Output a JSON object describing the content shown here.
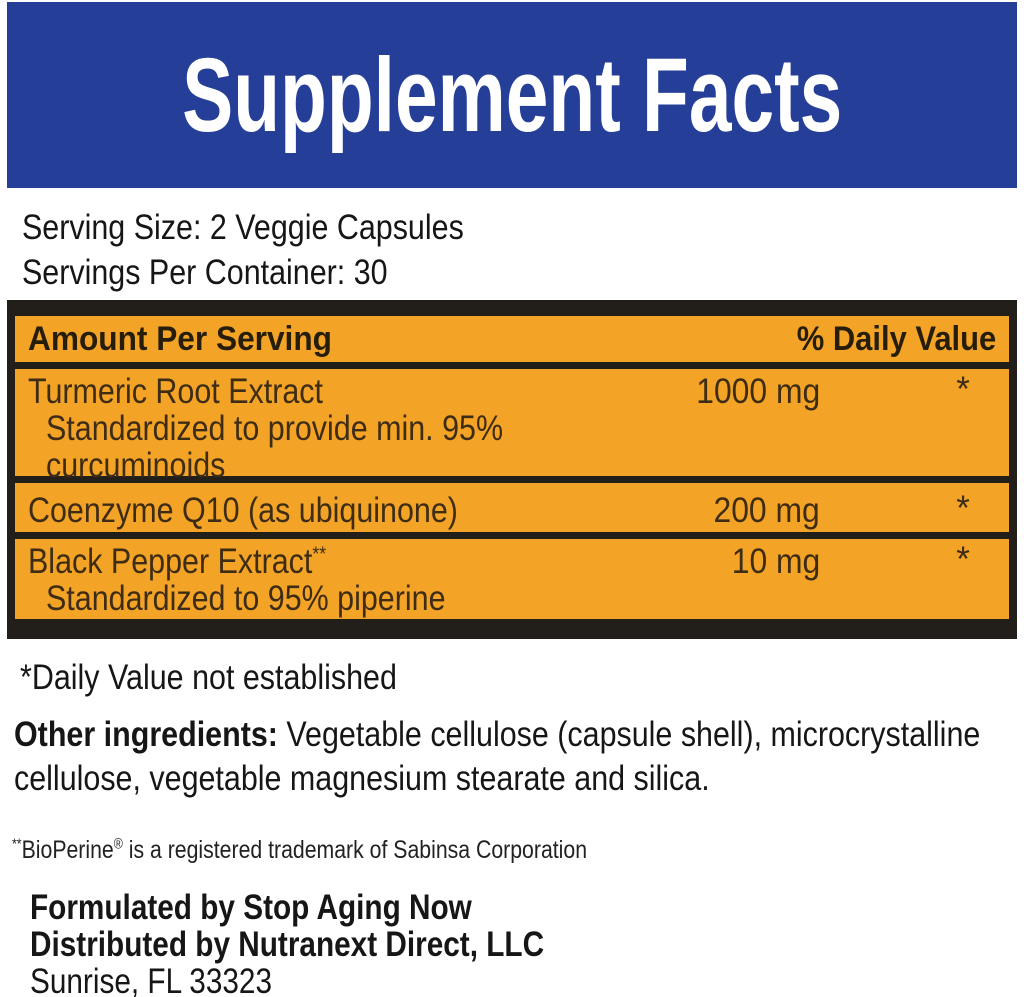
{
  "header": {
    "title": "Supplement Facts",
    "bg_color": "#253F98",
    "text_color": "#FFFFFF"
  },
  "serving": {
    "serving_size": "Serving Size: 2 Veggie Capsules",
    "servings_per_container": "Servings Per Container: 30"
  },
  "table": {
    "bg_color": "#F3A427",
    "bar_color": "#221E1A",
    "header": {
      "amount_label": "Amount Per Serving",
      "dv_label": "% Daily Value"
    },
    "rows": [
      {
        "name": "Turmeric Root Extract",
        "name_sup": "",
        "sub": [
          "Standardized to provide min. 95%",
          "curcuminoids"
        ],
        "amount": "1000 mg",
        "dv": "*"
      },
      {
        "name": "Coenzyme Q10 (as ubiquinone)",
        "name_sup": "",
        "sub": [],
        "amount": "200 mg",
        "dv": "*"
      },
      {
        "name": "Black Pepper Extract",
        "name_sup": "**",
        "sub": [
          "Standardized to 95% piperine"
        ],
        "amount": "10 mg",
        "dv": "*"
      }
    ]
  },
  "footnotes": {
    "daily_value": "*Daily Value not established",
    "other_ingredients_label": "Other ingredients:",
    "other_ingredients_line1": " Vegetable cellulose (capsule shell), microcrystalline",
    "other_ingredients_line2": "cellulose, vegetable magnesium stearate and silica.",
    "bioperine_sup": "**",
    "bioperine_name": "BioPerine",
    "bioperine_reg": "®",
    "bioperine_rest": " is a registered trademark of Sabinsa Corporation"
  },
  "footer": {
    "formulated": "Formulated by Stop Aging Now",
    "distributed": "Distributed by Nutranext Direct, LLC",
    "address": "Sunrise, FL 33323"
  }
}
